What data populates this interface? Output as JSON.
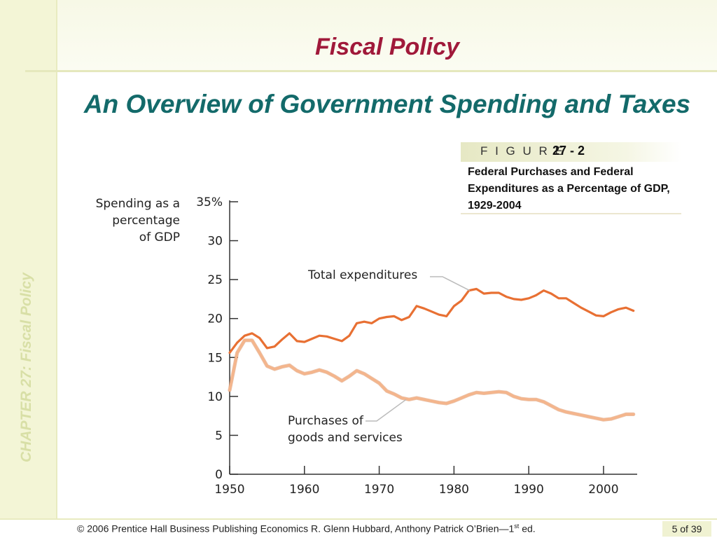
{
  "slide": {
    "title": "Fiscal Policy",
    "subtitle": "An Overview of Government Spending and Taxes",
    "side_label": "CHAPTER 27:  Fiscal Policy"
  },
  "figure": {
    "label": "F I G U R E",
    "number": "27 - 2",
    "caption": "Federal Purchases and Federal Expenditures as a Percentage of GDP, 1929-2004"
  },
  "footer": {
    "copyright": "© 2006 Prentice Hall Business Publishing   Economics  R. Glenn Hubbard, Anthony Patrick O’Brien—1",
    "edition_sup": "st",
    "edition_suffix": " ed.",
    "page": "5 of 39"
  },
  "colors": {
    "title": "#a0193a",
    "subtitle": "#136a6a",
    "total_expenditures": "#e87033",
    "purchases": "#f4b58c",
    "axis": "#333333"
  },
  "chart_data": {
    "type": "line",
    "title": "",
    "ylabel": "Spending as a percentage of GDP",
    "ylabel_lines": [
      "Spending as a",
      "percentage",
      "of GDP"
    ],
    "xlabel": "",
    "xlim": [
      1950,
      2004.5
    ],
    "ylim": [
      0,
      35
    ],
    "x_ticks": [
      "1950",
      "1960",
      "1970",
      "1980",
      "1990",
      "2000"
    ],
    "y_ticks": [
      "0",
      "5",
      "10",
      "15",
      "20",
      "25",
      "30",
      "35%"
    ],
    "y_tick_values": [
      0,
      5,
      10,
      15,
      20,
      25,
      30,
      35
    ],
    "x_tick_values": [
      1950,
      1960,
      1970,
      1980,
      1990,
      2000
    ],
    "grid": false,
    "legend": "none",
    "annotations": [
      {
        "text": "Total expenditures",
        "series": 0
      },
      {
        "text_lines": [
          "Purchases of",
          "goods and services"
        ],
        "series": 1
      }
    ],
    "x": [
      1950,
      1951,
      1952,
      1953,
      1954,
      1955,
      1956,
      1957,
      1958,
      1959,
      1960,
      1961,
      1962,
      1963,
      1964,
      1965,
      1966,
      1967,
      1968,
      1969,
      1970,
      1971,
      1972,
      1973,
      1974,
      1975,
      1976,
      1977,
      1978,
      1979,
      1980,
      1981,
      1982,
      1983,
      1984,
      1985,
      1986,
      1987,
      1988,
      1989,
      1990,
      1991,
      1992,
      1993,
      1994,
      1995,
      1996,
      1997,
      1998,
      1999,
      2000,
      2001,
      2002,
      2003,
      2004
    ],
    "series": [
      {
        "name": "Total expenditures",
        "values": [
          15.6,
          16.9,
          17.8,
          18.1,
          17.5,
          16.2,
          16.4,
          17.3,
          18.1,
          17.1,
          17.0,
          17.4,
          17.8,
          17.7,
          17.4,
          17.1,
          17.8,
          19.4,
          19.6,
          19.4,
          20.0,
          20.2,
          20.3,
          19.8,
          20.2,
          21.6,
          21.3,
          20.9,
          20.5,
          20.3,
          21.6,
          22.3,
          23.6,
          23.8,
          23.2,
          23.3,
          23.3,
          22.8,
          22.5,
          22.4,
          22.6,
          23.0,
          23.6,
          23.2,
          22.6,
          22.6,
          22.0,
          21.4,
          20.9,
          20.4,
          20.3,
          20.8,
          21.2,
          21.4,
          21.0
        ]
      },
      {
        "name": "Purchases of goods and services",
        "values": [
          10.8,
          15.6,
          17.2,
          17.2,
          15.6,
          13.9,
          13.5,
          13.8,
          14.0,
          13.3,
          12.9,
          13.1,
          13.4,
          13.1,
          12.6,
          12.0,
          12.6,
          13.3,
          12.9,
          12.3,
          11.7,
          10.7,
          10.3,
          9.8,
          9.6,
          9.8,
          9.6,
          9.4,
          9.2,
          9.1,
          9.4,
          9.8,
          10.2,
          10.5,
          10.4,
          10.5,
          10.6,
          10.5,
          10.0,
          9.7,
          9.6,
          9.6,
          9.3,
          8.8,
          8.3,
          8.0,
          7.8,
          7.6,
          7.4,
          7.2,
          7.0,
          7.1,
          7.4,
          7.7,
          7.7
        ]
      }
    ]
  }
}
